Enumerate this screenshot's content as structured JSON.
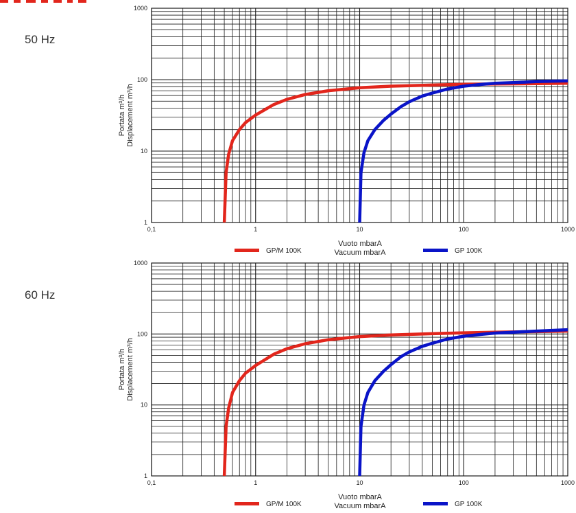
{
  "colors": {
    "red": "#e2261c",
    "blue": "#0a14c8",
    "grid": "#1a1a1a",
    "text": "#222222"
  },
  "chart_data": [
    {
      "type": "line",
      "frequency_label": "50 Hz",
      "xscale": "log",
      "yscale": "log",
      "xlim": [
        0.1,
        1000
      ],
      "ylim": [
        1,
        1000
      ],
      "xticks": [
        0.1,
        1,
        10,
        100,
        1000
      ],
      "xtick_labels": [
        "0,1",
        "1",
        "10",
        "100",
        "1000"
      ],
      "yticks": [
        1,
        10,
        100,
        1000
      ],
      "ytick_labels": [
        "1",
        "10",
        "100",
        "1000"
      ],
      "xlabel": [
        "Vuoto mbarA",
        "Vacuum mbarA"
      ],
      "ylabel": [
        "Portata m³/h",
        "Displacement m³/h"
      ],
      "grid": true,
      "legend_position": "bottom",
      "series": [
        {
          "name": "GP/M 100K",
          "color": "#e2261c",
          "x": [
            0.5,
            0.52,
            0.55,
            0.6,
            0.7,
            0.8,
            1,
            1.5,
            2,
            3,
            5,
            10,
            20,
            50,
            100,
            200,
            500,
            1000
          ],
          "y": [
            1,
            5,
            9,
            14,
            20,
            25,
            32,
            45,
            53,
            62,
            70,
            77,
            81,
            84,
            86,
            87,
            88,
            89
          ]
        },
        {
          "name": "GP 100K",
          "color": "#0a14c8",
          "x": [
            10,
            10.3,
            11,
            12,
            14,
            17,
            20,
            25,
            30,
            40,
            50,
            70,
            100,
            150,
            200,
            300,
            500,
            1000
          ],
          "y": [
            1,
            5,
            9.5,
            14,
            20,
            27,
            33,
            42,
            49,
            59,
            65,
            74,
            81,
            86,
            89,
            91,
            94,
            96
          ]
        }
      ]
    },
    {
      "type": "line",
      "frequency_label": "60 Hz",
      "xscale": "log",
      "yscale": "log",
      "xlim": [
        0.1,
        1000
      ],
      "ylim": [
        1,
        1000
      ],
      "xticks": [
        0.1,
        1,
        10,
        100,
        1000
      ],
      "xtick_labels": [
        "0,1",
        "1",
        "10",
        "100",
        "1000"
      ],
      "yticks": [
        1,
        10,
        100,
        1000
      ],
      "ytick_labels": [
        "1",
        "10",
        "100",
        "1000"
      ],
      "xlabel": [
        "Vuoto mbarA",
        "Vacuum mbarA"
      ],
      "ylabel": [
        "Portata m³/h",
        "Displacement m³/h"
      ],
      "grid": true,
      "legend_position": "bottom",
      "series": [
        {
          "name": "GP/M 100K",
          "color": "#e2261c",
          "x": [
            0.5,
            0.52,
            0.55,
            0.6,
            0.7,
            0.8,
            1,
            1.5,
            2,
            3,
            5,
            10,
            20,
            50,
            100,
            200,
            500,
            1000
          ],
          "y": [
            1,
            5,
            9,
            15,
            22,
            28,
            36,
            52,
            62,
            73,
            83,
            92,
            97,
            101,
            104,
            106,
            108,
            110
          ]
        },
        {
          "name": "GP 100K",
          "color": "#0a14c8",
          "x": [
            10,
            10.3,
            11,
            12,
            14,
            17,
            20,
            25,
            30,
            40,
            50,
            70,
            100,
            150,
            200,
            300,
            500,
            1000
          ],
          "y": [
            1,
            5,
            10,
            15,
            22,
            30,
            37,
            48,
            56,
            67,
            74,
            85,
            93,
            99,
            103,
            106,
            110,
            115
          ]
        }
      ]
    }
  ]
}
